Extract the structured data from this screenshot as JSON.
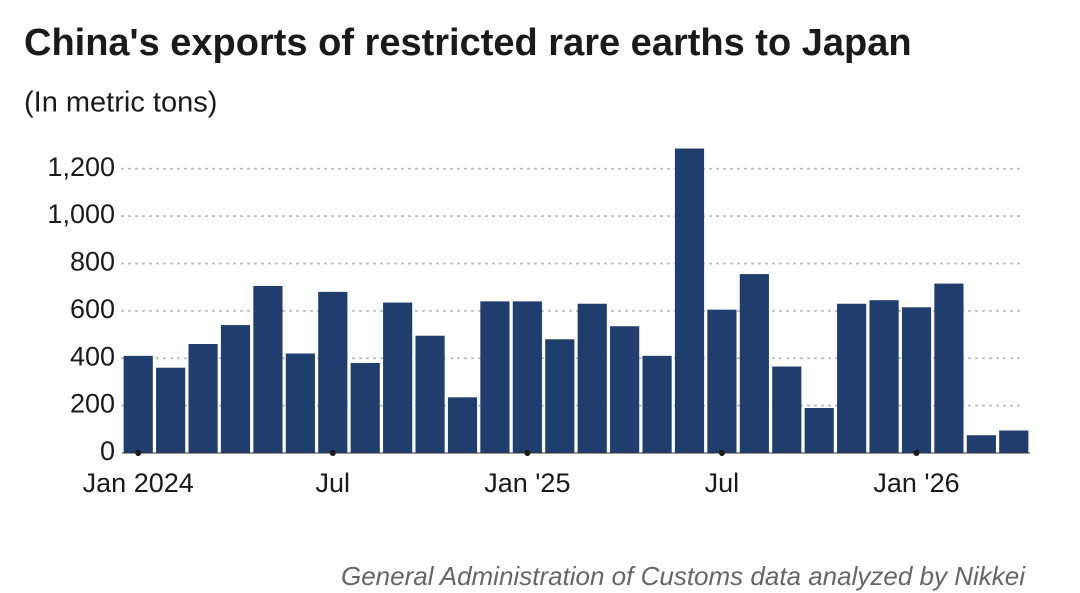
{
  "chart_data": {
    "type": "bar",
    "title": "China's exports of restricted rare earths to Japan",
    "subtitle": "(In metric tons)",
    "source": "General Administration of Customs data analyzed by Nikkei",
    "categories": [
      "Jan 2024",
      null,
      null,
      null,
      null,
      null,
      "Jul",
      null,
      null,
      null,
      null,
      null,
      "Jan '25",
      null,
      null,
      null,
      null,
      null,
      "Jul",
      null,
      null,
      null,
      null,
      null,
      "Jan '26",
      null,
      null,
      null
    ],
    "values": [
      410,
      360,
      460,
      540,
      705,
      420,
      680,
      380,
      635,
      495,
      235,
      640,
      640,
      480,
      630,
      535,
      410,
      1285,
      605,
      755,
      365,
      190,
      630,
      645,
      615,
      715,
      75,
      95
    ],
    "color": "#1f3e6e",
    "ylim": [
      0,
      1300
    ],
    "yticks": [
      0,
      200,
      400,
      600,
      800,
      {
        "value": 1000,
        "label": "1,000"
      },
      {
        "value": 1200,
        "label": "1,200"
      }
    ],
    "grid": true
  }
}
